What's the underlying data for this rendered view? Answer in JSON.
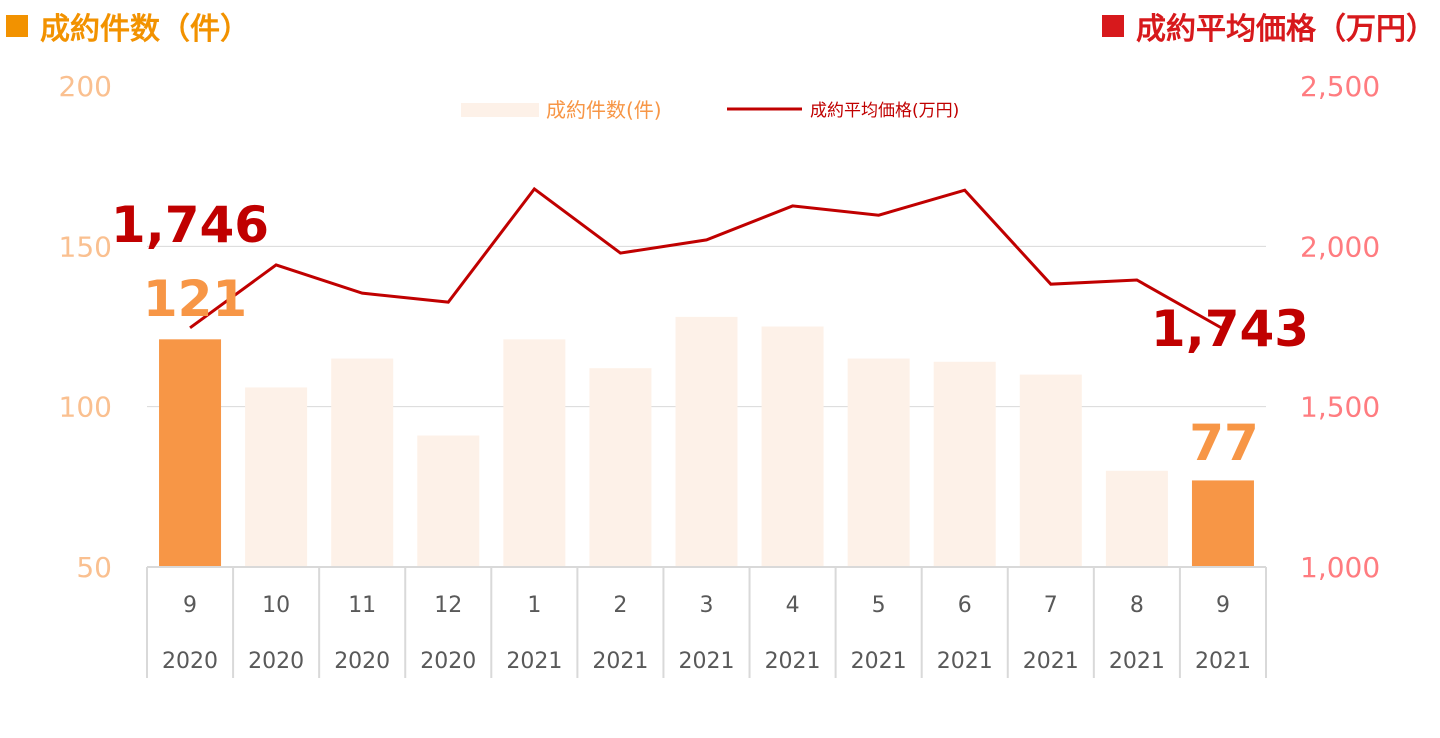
{
  "chart_data": {
    "type": "bar+line",
    "left_title": "成約件数（件）",
    "right_title": "成約平均価格（万円）",
    "categories": [
      {
        "month": "9",
        "year": "2020"
      },
      {
        "month": "10",
        "year": "2020"
      },
      {
        "month": "11",
        "year": "2020"
      },
      {
        "month": "12",
        "year": "2020"
      },
      {
        "month": "1",
        "year": "2021"
      },
      {
        "month": "2",
        "year": "2021"
      },
      {
        "month": "3",
        "year": "2021"
      },
      {
        "month": "4",
        "year": "2021"
      },
      {
        "month": "5",
        "year": "2021"
      },
      {
        "month": "6",
        "year": "2021"
      },
      {
        "month": "7",
        "year": "2021"
      },
      {
        "month": "8",
        "year": "2021"
      },
      {
        "month": "9",
        "year": "2021"
      }
    ],
    "series": [
      {
        "name": "成約件数(件)",
        "type": "bar",
        "axis": "left",
        "values": [
          121,
          106,
          115,
          91,
          121,
          112,
          128,
          125,
          115,
          114,
          110,
          80,
          77
        ]
      },
      {
        "name": "成約平均価格(万円)",
        "type": "line",
        "axis": "right",
        "values": [
          1746,
          1942,
          1854,
          1826,
          2179,
          1979,
          2020,
          2126,
          2097,
          2175,
          1882,
          1895,
          1743
        ]
      }
    ],
    "left_axis": {
      "ylim": [
        50,
        200
      ],
      "ticks": [
        "50",
        "100",
        "150",
        "200"
      ]
    },
    "right_axis": {
      "ylim": [
        1000,
        2500
      ],
      "ticks": [
        "1,000",
        "1,500",
        "2,000",
        "2,500"
      ]
    },
    "annotations": {
      "first_price": "1,746",
      "first_count": "121",
      "last_price": "1,743",
      "last_count": "77"
    },
    "legend_placement": "top-center",
    "grid": true,
    "colors": {
      "bar": "#fdf1e8",
      "bar_highlight": "#f79646",
      "line": "#c00000",
      "left_axis": "#fac090",
      "right_axis": "#ff7c80",
      "left_title": "#f29200",
      "right_title": "#d7191c"
    }
  }
}
